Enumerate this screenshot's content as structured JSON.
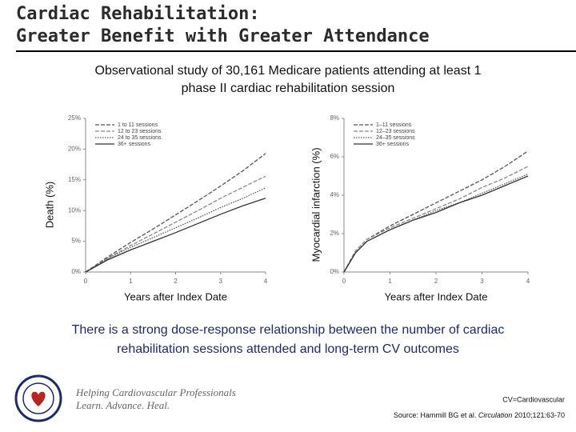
{
  "slide": {
    "title": [
      "Cardiac Rehabilitation:",
      "Greater Benefit with Greater Attendance"
    ],
    "subtitle": [
      "Observational study of 30,161 Medicare patients attending at least 1",
      "phase II cardiac rehabilitation session"
    ],
    "conclusion": [
      "There is a strong dose-response relationship between the number of cardiac",
      "rehabilitation sessions attended and long-term CV outcomes"
    ],
    "logo_text": [
      "Helping Cardiovascular Professionals",
      "Learn. Advance. Heal."
    ],
    "footnote": "CV=Cardiovascular",
    "source": {
      "prefix": "Source: Hammill BG et al.",
      "journal": "Circulation",
      "citation": "2010;121:63-70"
    }
  },
  "chart_data": [
    {
      "type": "line",
      "ylabel": "Death (%)",
      "xlabel": "Years after Index Date",
      "x": [
        0,
        0.5,
        1,
        1.5,
        2,
        2.5,
        3,
        3.5,
        4
      ],
      "xlim": [
        0,
        4
      ],
      "xticks": [
        0,
        1,
        2,
        3,
        4
      ],
      "ylim": [
        0,
        25
      ],
      "yticks": [
        {
          "value": 0,
          "label": "0%"
        },
        {
          "value": 5,
          "label": "5%"
        },
        {
          "value": 10,
          "label": "10%"
        },
        {
          "value": 15,
          "label": "15%"
        },
        {
          "value": 20,
          "label": "20%"
        },
        {
          "value": 25,
          "label": "25%"
        }
      ],
      "legend": "upper left",
      "series": [
        {
          "name": "1 to 11 sessions",
          "color": "#555555",
          "style": "dashed",
          "values": [
            0,
            2.5,
            4.8,
            7,
            9.3,
            11.6,
            14,
            16.5,
            19.3
          ]
        },
        {
          "name": "12 to 23 sessions",
          "color": "#888888",
          "style": "dashed",
          "values": [
            0,
            2.3,
            4.3,
            6.2,
            8.1,
            10,
            12,
            13.8,
            15.6
          ]
        },
        {
          "name": "24 to 35 sessions",
          "color": "#555555",
          "style": "dotted",
          "values": [
            0,
            2.2,
            4,
            5.6,
            7.2,
            8.8,
            10.5,
            12,
            13.7
          ]
        },
        {
          "name": "36+ sessions",
          "color": "#333333",
          "style": "solid",
          "values": [
            0,
            2,
            3.6,
            5,
            6.4,
            7.9,
            9.4,
            10.8,
            12
          ]
        }
      ]
    },
    {
      "type": "line",
      "ylabel": "Myocardial infarction (%)",
      "xlabel": "Years after Index Date",
      "x": [
        0,
        0.25,
        0.5,
        1,
        1.5,
        2,
        2.5,
        3,
        3.5,
        4
      ],
      "xlim": [
        0,
        4
      ],
      "xticks": [
        0,
        1,
        2,
        3,
        4
      ],
      "ylim": [
        0,
        8
      ],
      "yticks": [
        {
          "value": 0,
          "label": "0%"
        },
        {
          "value": 2,
          "label": "2%"
        },
        {
          "value": 4,
          "label": "4%"
        },
        {
          "value": 6,
          "label": "6%"
        },
        {
          "value": 8,
          "label": "8%"
        }
      ],
      "legend": "upper left",
      "series": [
        {
          "name": "1–11 sessions",
          "color": "#555555",
          "style": "dashed",
          "values": [
            0,
            1.1,
            1.7,
            2.4,
            3,
            3.6,
            4.2,
            4.8,
            5.5,
            6.3
          ]
        },
        {
          "name": "12–23 sessions",
          "color": "#888888",
          "style": "dashed",
          "values": [
            0,
            1.1,
            1.7,
            2.3,
            2.8,
            3.3,
            3.8,
            4.4,
            4.9,
            5.5
          ]
        },
        {
          "name": "24–35 sessions",
          "color": "#555555",
          "style": "dotted",
          "values": [
            0,
            1,
            1.6,
            2.2,
            2.7,
            3.2,
            3.6,
            4.1,
            4.6,
            5.1
          ]
        },
        {
          "name": "36+ sessions",
          "color": "#333333",
          "style": "solid",
          "values": [
            0,
            1,
            1.6,
            2.2,
            2.7,
            3.1,
            3.6,
            4,
            4.5,
            5
          ]
        }
      ]
    }
  ]
}
